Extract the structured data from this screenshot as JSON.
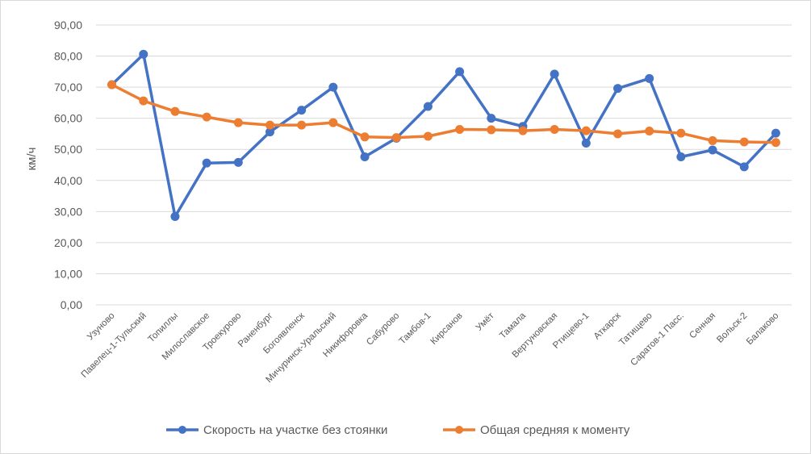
{
  "chart_data": {
    "type": "line",
    "title": "",
    "xlabel": "",
    "ylabel": "км/ч",
    "ylim": [
      0,
      90
    ],
    "yticks": [
      "0,00",
      "10,00",
      "20,00",
      "30,00",
      "40,00",
      "50,00",
      "60,00",
      "70,00",
      "80,00",
      "90,00"
    ],
    "grid": true,
    "legend_position": "bottom",
    "categories": [
      "Узуново",
      "Павелец-1-Тульский",
      "Топиллы",
      "Милославское",
      "Троекурово",
      "Раненбург",
      "Богоявленск",
      "Мичуринск-Уральский",
      "Никифоровка",
      "Сабурово",
      "Тамбов-1",
      "Кирсанов",
      "Умёт",
      "Тамала",
      "Вертуновская",
      "Ртищево-1",
      "Аткарск",
      "Татищево",
      "Саратов-1 Пасс.",
      "Сенная",
      "Вольск-2",
      "Балаково"
    ],
    "series": [
      {
        "name": "Скорость на участке без стоянки",
        "color": "#4472c4",
        "values": [
          70.8,
          80.6,
          28.4,
          45.6,
          45.8,
          55.6,
          62.6,
          70.0,
          47.6,
          53.6,
          63.8,
          75.0,
          60.0,
          57.4,
          74.2,
          52.0,
          69.6,
          72.8,
          47.6,
          49.8,
          44.4,
          55.2
        ]
      },
      {
        "name": "Общая средняя к моменту",
        "color": "#ed7d31",
        "values": [
          70.8,
          65.6,
          62.2,
          60.4,
          58.6,
          57.8,
          57.8,
          58.6,
          54.0,
          53.8,
          54.2,
          56.4,
          56.3,
          56.0,
          56.4,
          56.0,
          55.0,
          55.9,
          55.2,
          52.8,
          52.4,
          52.2
        ]
      }
    ]
  }
}
